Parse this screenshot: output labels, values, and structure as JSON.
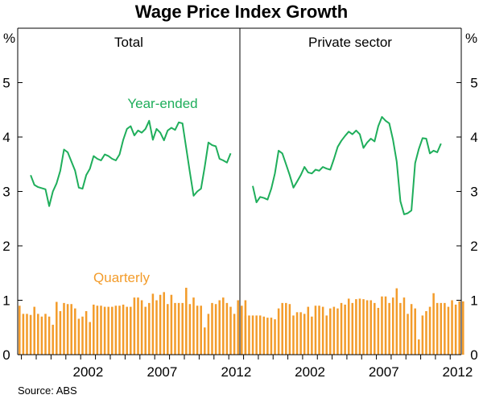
{
  "chart_data": {
    "type": "bar+line",
    "title": "Wage Price Index Growth",
    "source": "Source: ABS",
    "y_unit": "%",
    "ylim": [
      0,
      6
    ],
    "yticks": [
      0,
      1,
      2,
      3,
      4,
      5
    ],
    "x_tick_labels": [
      "2002",
      "2007",
      "2012"
    ],
    "x_tick_years": [
      2002.5,
      2007.5,
      2012.5
    ],
    "xlim": [
      1997.75,
      2012.75
    ],
    "colors": {
      "year_ended": "#1fae5b",
      "quarterly": "#f39c2b",
      "axis": "#000000"
    },
    "annotations": {
      "year_ended": "Year-ended",
      "quarterly": "Quarterly"
    },
    "panels": [
      {
        "title": "Total",
        "series": [
          {
            "name": "Year-ended",
            "type": "line",
            "start": 1998.5,
            "values": [
              3.3,
              3.12,
              3.08,
              3.06,
              3.04,
              2.73,
              3.0,
              3.15,
              3.38,
              3.77,
              3.72,
              3.55,
              3.38,
              3.07,
              3.05,
              3.3,
              3.42,
              3.65,
              3.6,
              3.57,
              3.68,
              3.65,
              3.6,
              3.57,
              3.68,
              3.95,
              4.15,
              4.2,
              4.03,
              4.12,
              4.08,
              4.15,
              4.3,
              3.95,
              4.15,
              4.08,
              3.94,
              4.12,
              4.17,
              4.13,
              4.27,
              4.25,
              3.8,
              3.35,
              2.92,
              3.0,
              3.05,
              3.45,
              3.9,
              3.85,
              3.83,
              3.6,
              3.57,
              3.53,
              3.7
            ]
          },
          {
            "name": "Quarterly",
            "type": "bar",
            "start": 1997.75,
            "values": [
              0.9,
              0.75,
              0.75,
              0.73,
              0.88,
              0.75,
              0.7,
              0.75,
              0.7,
              0.55,
              0.97,
              0.8,
              0.95,
              0.93,
              0.93,
              0.85,
              0.66,
              0.7,
              0.8,
              0.6,
              0.92,
              0.9,
              0.9,
              0.88,
              0.88,
              0.88,
              0.9,
              0.9,
              0.92,
              0.88,
              0.88,
              1.05,
              1.05,
              1.0,
              0.88,
              0.95,
              1.12,
              1.0,
              1.1,
              1.15,
              0.93,
              1.1,
              0.95,
              0.95,
              0.95,
              1.23,
              0.93,
              1.05,
              0.9,
              0.9,
              0.5,
              0.75,
              0.95,
              0.93,
              1.0,
              1.05,
              0.95,
              0.88,
              0.75,
              1.0,
              0.9,
              1.0
            ]
          }
        ]
      },
      {
        "title": "Private sector",
        "series": [
          {
            "name": "Year-ended",
            "type": "line",
            "start": 1998.5,
            "values": [
              3.1,
              2.8,
              2.9,
              2.88,
              2.85,
              3.05,
              3.33,
              3.75,
              3.7,
              3.5,
              3.3,
              3.07,
              3.18,
              3.3,
              3.45,
              3.35,
              3.33,
              3.4,
              3.38,
              3.45,
              3.42,
              3.4,
              3.6,
              3.82,
              3.93,
              4.02,
              4.1,
              4.05,
              4.12,
              4.05,
              3.8,
              3.9,
              3.97,
              3.92,
              4.2,
              4.37,
              4.3,
              4.25,
              3.95,
              3.55,
              2.82,
              2.58,
              2.6,
              2.65,
              3.52,
              3.78,
              3.98,
              3.97,
              3.7,
              3.75,
              3.72,
              3.88
            ]
          },
          {
            "name": "Quarterly",
            "type": "bar",
            "start": 1997.75,
            "values": [
              0.88,
              0.72,
              0.72,
              0.72,
              0.72,
              0.72,
              0.7,
              0.68,
              0.68,
              0.65,
              0.85,
              0.95,
              0.95,
              0.93,
              0.72,
              0.78,
              0.78,
              0.75,
              0.88,
              0.7,
              0.9,
              0.9,
              0.88,
              0.72,
              0.85,
              0.88,
              0.85,
              0.95,
              0.92,
              1.03,
              0.95,
              1.02,
              1.03,
              1.02,
              1.0,
              1.0,
              0.95,
              0.86,
              1.07,
              1.07,
              0.95,
              1.05,
              1.22,
              0.95,
              1.05,
              0.75,
              0.93,
              0.85,
              0.28,
              0.72,
              0.8,
              0.88,
              1.13,
              0.95,
              0.95,
              0.95,
              0.88,
              1.0,
              0.92,
              0.98,
              0.98
            ]
          }
        ]
      }
    ]
  }
}
